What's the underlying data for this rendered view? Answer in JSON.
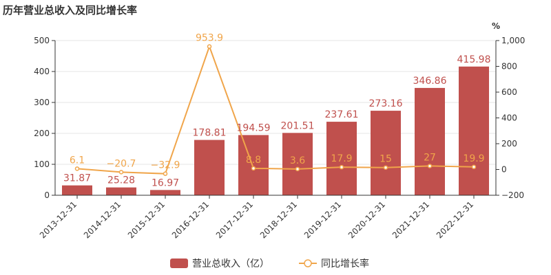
{
  "chart_data": {
    "type": "bar",
    "title": "历年营业总收入及同比增长率",
    "categories": [
      "2013-12-31",
      "2014-12-31",
      "2015-12-31",
      "2016-12-31",
      "2017-12-31",
      "2018-12-31",
      "2019-12-31",
      "2020-12-31",
      "2021-12-31",
      "2022-12-31"
    ],
    "series": [
      {
        "name": "营业总收入（亿）",
        "type": "bar",
        "axis": "left",
        "color": "#c0504d",
        "values": [
          31.87,
          25.28,
          16.97,
          178.81,
          194.59,
          201.51,
          237.61,
          273.16,
          346.86,
          415.98
        ],
        "labels": [
          "31.87",
          "25.28",
          "16.97",
          "178.81",
          "194.59",
          "201.51",
          "237.61",
          "273.16",
          "346.86",
          "415.98"
        ]
      },
      {
        "name": "同比增长率",
        "type": "line",
        "axis": "right",
        "color": "#f0a54a",
        "values": [
          6.1,
          -20.7,
          -32.9,
          953.9,
          8.8,
          3.6,
          17.9,
          15,
          27,
          19.9
        ],
        "labels": [
          "6.1",
          "−20.7",
          "−32.9",
          "953.9",
          "8.8",
          "3.6",
          "17.9",
          "15",
          "27",
          "19.9"
        ]
      }
    ],
    "y_left": {
      "min": 0,
      "max": 500,
      "ticks": [
        0,
        100,
        200,
        300,
        400,
        500
      ],
      "tick_labels": [
        "0",
        "100",
        "200",
        "300",
        "400",
        "500"
      ]
    },
    "y_right": {
      "min": -200,
      "max": 1000,
      "ticks": [
        -200,
        0,
        200,
        400,
        600,
        800,
        1000
      ],
      "tick_labels": [
        "−200",
        "0",
        "200",
        "400",
        "600",
        "800",
        "1,000"
      ],
      "unit": "%"
    },
    "grid": true,
    "legend": "bottom-center"
  }
}
